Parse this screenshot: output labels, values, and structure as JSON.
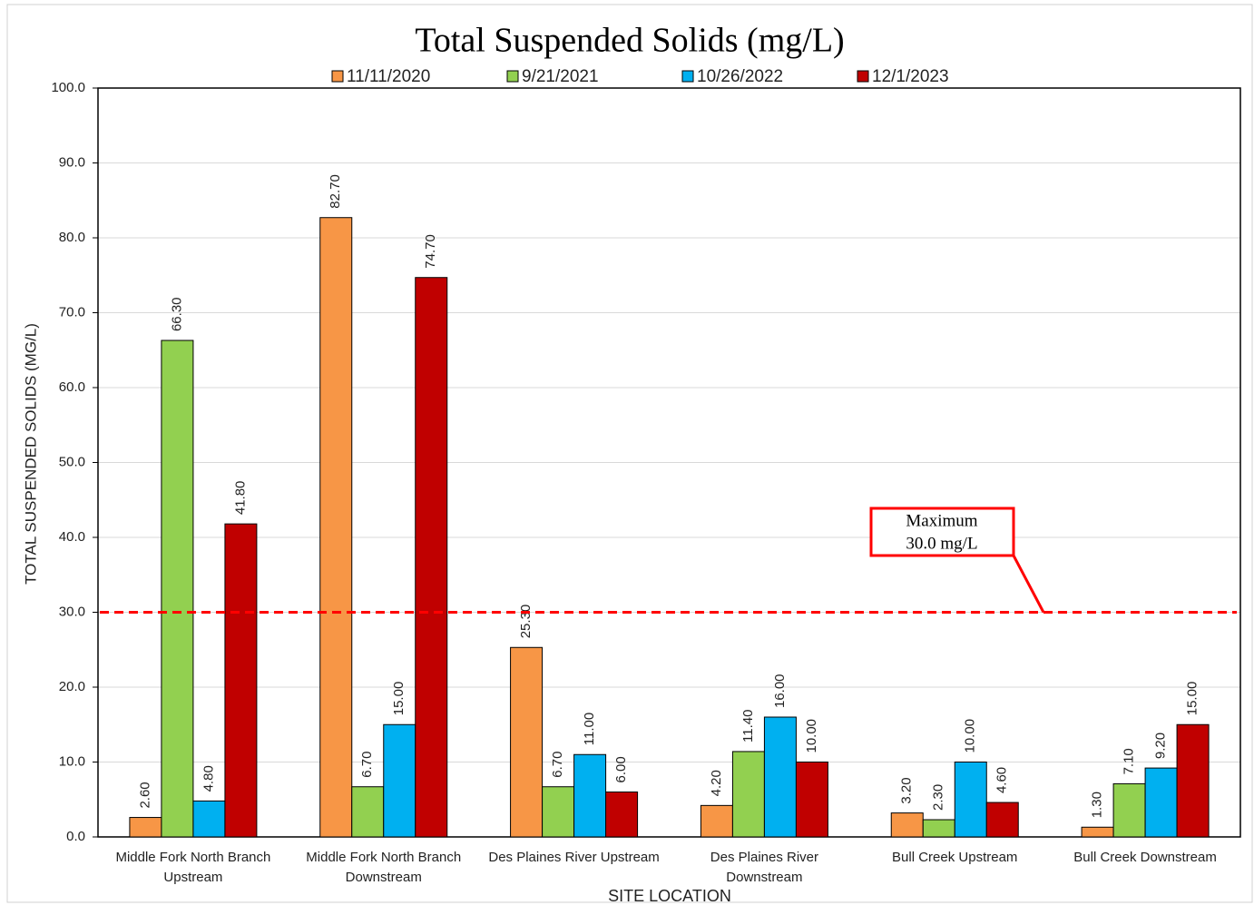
{
  "chart_data": {
    "type": "bar",
    "title": "Total Suspended Solids (mg/L)",
    "x_label": "SITE LOCATION",
    "y_label": "TOTAL SUSPENDED SOLIDS (MG/L)",
    "categories": [
      "Middle Fork North Branch Upstream",
      "Middle Fork North Branch Downstream",
      "Des Plaines River Upstream",
      "Des Plaines River Downstream",
      "Bull Creek Upstream",
      "Bull Creek Downstream"
    ],
    "series": [
      {
        "name": "11/11/2020",
        "color": "#f79646",
        "values": [
          2.6,
          82.7,
          25.3,
          4.2,
          3.2,
          1.3
        ],
        "value_labels": [
          "2.60",
          "82.70",
          "25.30",
          "4.20",
          "3.20",
          "1.30"
        ]
      },
      {
        "name": "9/21/2021",
        "color": "#92d050",
        "values": [
          66.3,
          6.7,
          6.7,
          11.4,
          2.3,
          7.1
        ],
        "value_labels": [
          "66.30",
          "6.70",
          "6.70",
          "11.40",
          "2.30",
          "7.10"
        ]
      },
      {
        "name": "10/26/2022",
        "color": "#00b0f0",
        "values": [
          4.8,
          15,
          11,
          16,
          10,
          9.2
        ],
        "value_labels": [
          "4.80",
          "15.00",
          "11.00",
          "16.00",
          "10.00",
          "9.20"
        ]
      },
      {
        "name": "12/1/2023",
        "color": "#c00000",
        "values": [
          41.8,
          74.7,
          6,
          10,
          4.6,
          15
        ],
        "value_labels": [
          "41.80",
          "74.70",
          "6.00",
          "10.00",
          "4.60",
          "15.00"
        ]
      }
    ],
    "ylim": [
      0,
      100
    ],
    "yticks": [
      {
        "value": 0,
        "label": "0.0"
      },
      {
        "value": 10,
        "label": "10.0"
      },
      {
        "value": 20,
        "label": "20.0"
      },
      {
        "value": 30,
        "label": "30.0"
      },
      {
        "value": 40,
        "label": "40.0"
      },
      {
        "value": 50,
        "label": "50.0"
      },
      {
        "value": 60,
        "label": "60.0"
      },
      {
        "value": 70,
        "label": "70.0"
      },
      {
        "value": 80,
        "label": "80.0"
      },
      {
        "value": 90,
        "label": "90.0"
      },
      {
        "value": 100,
        "label": "100.0"
      }
    ],
    "grid": true,
    "reference_line": {
      "value": 30,
      "color": "#ff0000",
      "annotation": [
        "Maximum",
        "30.0 mg/L"
      ]
    }
  }
}
